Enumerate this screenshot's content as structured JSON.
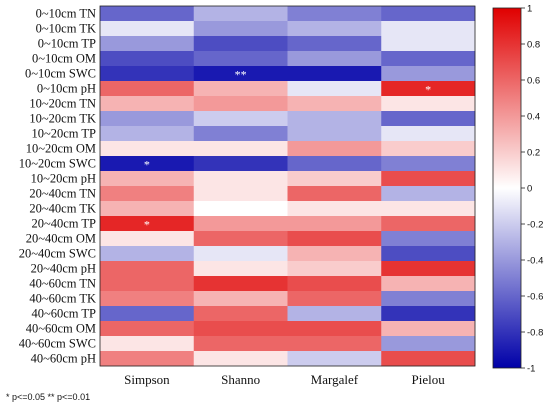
{
  "footnote": "* p<=0.05  ** p<=0.01",
  "chart_data": {
    "type": "heatmap",
    "columns": [
      "Simpson",
      "Shanno",
      "Margalef",
      "Pielou"
    ],
    "rows": [
      "0~10cm TN",
      "0~10cm TK",
      "0~10cm TP",
      "0~10cm OM",
      "0~10cm SWC",
      "0~10cm pH",
      "10~20cm TN",
      "10~20cm TK",
      "10~20cm TP",
      "10~20cm OM",
      "10~20cm SWC",
      "10~20cm pH",
      "20~40cm TN",
      "20~40cm TK",
      "20~40cm TP",
      "20~40cm OM",
      "20~40cm SWC",
      "20~40cm pH",
      "40~60cm TN",
      "40~60cm TK",
      "40~60cm TP",
      "40~60cm OM",
      "40~60cm SWC",
      "40~60cm pH"
    ],
    "values": [
      [
        -0.6,
        -0.3,
        -0.5,
        -0.6
      ],
      [
        -0.1,
        -0.4,
        -0.3,
        -0.1
      ],
      [
        -0.4,
        -0.7,
        -0.6,
        -0.1
      ],
      [
        -0.7,
        -0.6,
        -0.4,
        -0.6
      ],
      [
        -0.8,
        -0.9,
        -0.9,
        -0.4
      ],
      [
        0.6,
        0.3,
        -0.1,
        0.85
      ],
      [
        0.3,
        0.4,
        0.3,
        0.1
      ],
      [
        -0.4,
        -0.2,
        -0.3,
        -0.6
      ],
      [
        -0.3,
        -0.5,
        -0.3,
        -0.1
      ],
      [
        0.1,
        0.1,
        0.4,
        0.2
      ],
      [
        -0.9,
        -0.8,
        -0.6,
        -0.5
      ],
      [
        0.3,
        0.1,
        0.2,
        0.7
      ],
      [
        0.5,
        0.1,
        0.6,
        -0.3
      ],
      [
        0.3,
        0.0,
        0.1,
        0.1
      ],
      [
        0.85,
        0.4,
        0.4,
        0.6
      ],
      [
        0.1,
        0.6,
        0.7,
        -0.5
      ],
      [
        -0.3,
        -0.1,
        0.3,
        -0.7
      ],
      [
        0.6,
        0.1,
        0.2,
        0.8
      ],
      [
        0.6,
        0.8,
        0.7,
        0.3
      ],
      [
        0.5,
        0.3,
        0.6,
        -0.5
      ],
      [
        -0.6,
        0.6,
        -0.3,
        -0.8
      ],
      [
        0.6,
        0.7,
        0.7,
        0.3
      ],
      [
        0.1,
        0.6,
        0.6,
        -0.4
      ],
      [
        0.5,
        0.1,
        -0.2,
        0.7
      ]
    ],
    "significance": [
      {
        "row": "0~10cm SWC",
        "column": "Shanno",
        "mark": "**"
      },
      {
        "row": "0~10cm pH",
        "column": "Pielou",
        "mark": "*"
      },
      {
        "row": "10~20cm SWC",
        "column": "Simpson",
        "mark": "*"
      },
      {
        "row": "20~40cm TP",
        "column": "Simpson",
        "mark": "*"
      }
    ],
    "colorbar": {
      "range": [
        -1,
        1
      ],
      "ticks": [
        "-1",
        "-0.8",
        "-0.6",
        "-0.4",
        "-0.2",
        "0",
        "0.2",
        "0.4",
        "0.6",
        "0.8",
        "1"
      ],
      "colors": {
        "low": "#0000a8",
        "mid": "#ffffff",
        "high": "#e00000"
      }
    }
  }
}
